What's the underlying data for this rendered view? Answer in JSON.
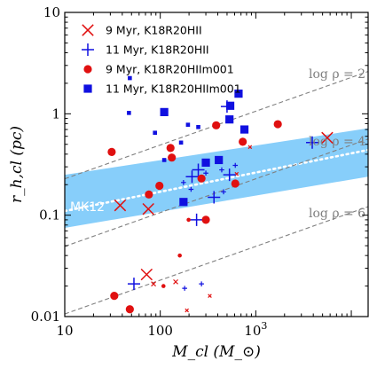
{
  "chart_data": {
    "type": "scatter",
    "x_scale": "log",
    "y_scale": "log",
    "xlim": [
      10,
      15000
    ],
    "ylim": [
      0.01,
      10
    ],
    "xlabel": "M_cl (M_⊙)",
    "ylabel": "r_h,cl (pc)",
    "x_ticks": [
      {
        "value": 10,
        "base": "10",
        "exp": ""
      },
      {
        "value": 100,
        "base": "100",
        "exp": ""
      },
      {
        "value": 1000,
        "base": "10",
        "exp": "3"
      }
    ],
    "y_ticks": [
      {
        "value": 0.01,
        "label": "0.01"
      },
      {
        "value": 0.1,
        "label": "0.1"
      },
      {
        "value": 1,
        "label": "1"
      },
      {
        "value": 10,
        "label": "10"
      }
    ],
    "legend": {
      "position": "top-left",
      "entries": [
        {
          "series": 0,
          "label": "9 Myr, K18R20HII"
        },
        {
          "series": 1,
          "label": "11 Myr, K18R20HII"
        },
        {
          "series": 2,
          "label": "9 Myr, K18R20HIIm001"
        },
        {
          "series": 3,
          "label": "11 Myr, K18R20HIIm001"
        }
      ]
    },
    "density_lines": [
      {
        "label": "log ρ = 2",
        "log_rho": 2
      },
      {
        "label": "log ρ = 4",
        "log_rho": 4
      },
      {
        "label": "log ρ = 6",
        "log_rho": 6
      }
    ],
    "band": {
      "label": "MK12",
      "color": "#87cefa",
      "lower": [
        [
          10,
          0.075
        ],
        [
          15000,
          0.24
        ]
      ],
      "center": [
        [
          10,
          0.11
        ],
        [
          15000,
          0.44
        ]
      ],
      "upper": [
        [
          10,
          0.25
        ],
        [
          15000,
          0.72
        ]
      ]
    },
    "series": [
      {
        "label": "9 Myr, K18R20HII",
        "marker": "x",
        "color": "#e01010",
        "points": [
          {
            "x": 38,
            "y": 0.125,
            "s": 1.0
          },
          {
            "x": 75,
            "y": 0.115,
            "s": 1.0
          },
          {
            "x": 72,
            "y": 0.026,
            "s": 1.0
          },
          {
            "x": 5600,
            "y": 0.58,
            "s": 1.0
          },
          {
            "x": 85,
            "y": 0.021,
            "s": 0.4
          },
          {
            "x": 145,
            "y": 0.022,
            "s": 0.4
          },
          {
            "x": 190,
            "y": 0.0115,
            "s": 0.3
          },
          {
            "x": 330,
            "y": 0.016,
            "s": 0.3
          },
          {
            "x": 630,
            "y": 0.255,
            "s": 0.3
          },
          {
            "x": 870,
            "y": 0.47,
            "s": 0.3
          }
        ]
      },
      {
        "label": "11 Myr, K18R20HII",
        "marker": "+",
        "color": "#1010e0",
        "points": [
          {
            "x": 53,
            "y": 0.021,
            "s": 1.0
          },
          {
            "x": 240,
            "y": 0.09,
            "s": 1.0
          },
          {
            "x": 250,
            "y": 0.28,
            "s": 1.0
          },
          {
            "x": 215,
            "y": 0.24,
            "s": 1.0
          },
          {
            "x": 365,
            "y": 0.15,
            "s": 1.0
          },
          {
            "x": 500,
            "y": 1.18,
            "s": 1.0
          },
          {
            "x": 530,
            "y": 0.25,
            "s": 1.0
          },
          {
            "x": 3900,
            "y": 0.52,
            "s": 1.0
          },
          {
            "x": 175,
            "y": 0.21,
            "s": 0.4
          },
          {
            "x": 210,
            "y": 0.18,
            "s": 0.4
          },
          {
            "x": 300,
            "y": 0.26,
            "s": 0.4
          },
          {
            "x": 440,
            "y": 0.28,
            "s": 0.4
          },
          {
            "x": 460,
            "y": 0.17,
            "s": 0.4
          },
          {
            "x": 610,
            "y": 0.31,
            "s": 0.4
          },
          {
            "x": 180,
            "y": 0.019,
            "s": 0.4
          },
          {
            "x": 270,
            "y": 0.021,
            "s": 0.4
          }
        ]
      },
      {
        "label": "9 Myr, K18R20HIIm001",
        "marker": "circle",
        "color": "#e01010",
        "points": [
          {
            "x": 31,
            "y": 0.42,
            "s": 1.0
          },
          {
            "x": 76,
            "y": 0.16,
            "s": 1.0
          },
          {
            "x": 98,
            "y": 0.195,
            "s": 1.0
          },
          {
            "x": 128,
            "y": 0.46,
            "s": 1.0
          },
          {
            "x": 132,
            "y": 0.37,
            "s": 1.0
          },
          {
            "x": 33,
            "y": 0.016,
            "s": 1.0
          },
          {
            "x": 48,
            "y": 0.0118,
            "s": 1.0
          },
          {
            "x": 270,
            "y": 0.23,
            "s": 1.0
          },
          {
            "x": 385,
            "y": 0.77,
            "s": 1.0
          },
          {
            "x": 610,
            "y": 0.205,
            "s": 1.0
          },
          {
            "x": 730,
            "y": 0.53,
            "s": 1.0
          },
          {
            "x": 1700,
            "y": 0.79,
            "s": 1.0
          },
          {
            "x": 300,
            "y": 0.09,
            "s": 1.0
          },
          {
            "x": 108,
            "y": 0.02,
            "s": 0.5
          },
          {
            "x": 160,
            "y": 0.04,
            "s": 0.5
          },
          {
            "x": 198,
            "y": 0.09,
            "s": 0.5
          }
        ]
      },
      {
        "label": "11 Myr, K18R20HIIm001",
        "marker": "square",
        "color": "#1010e0",
        "points": [
          {
            "x": 110,
            "y": 1.04,
            "s": 1.0
          },
          {
            "x": 175,
            "y": 0.135,
            "s": 1.0
          },
          {
            "x": 300,
            "y": 0.33,
            "s": 1.0
          },
          {
            "x": 410,
            "y": 0.35,
            "s": 1.0
          },
          {
            "x": 540,
            "y": 1.2,
            "s": 1.0
          },
          {
            "x": 660,
            "y": 1.58,
            "s": 1.0
          },
          {
            "x": 760,
            "y": 0.7,
            "s": 1.0
          },
          {
            "x": 530,
            "y": 0.88,
            "s": 1.0
          },
          {
            "x": 48,
            "y": 2.25,
            "s": 0.5
          },
          {
            "x": 47,
            "y": 1.02,
            "s": 0.5
          },
          {
            "x": 88,
            "y": 0.65,
            "s": 0.5
          },
          {
            "x": 110,
            "y": 0.35,
            "s": 0.5
          },
          {
            "x": 165,
            "y": 0.52,
            "s": 0.5
          },
          {
            "x": 195,
            "y": 0.78,
            "s": 0.5
          },
          {
            "x": 250,
            "y": 0.74,
            "s": 0.5
          }
        ]
      }
    ]
  }
}
